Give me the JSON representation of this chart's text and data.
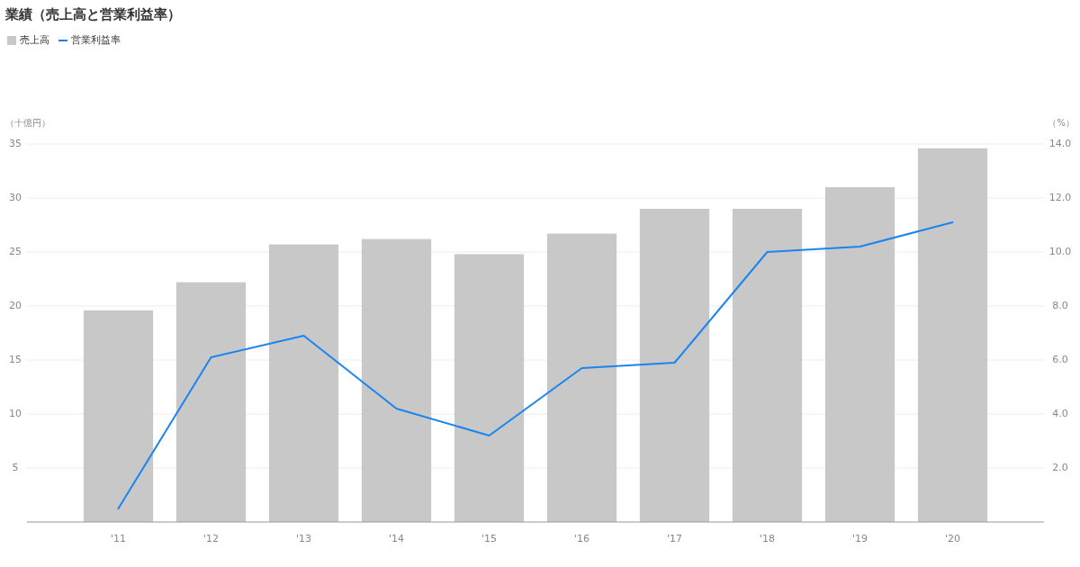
{
  "chart_data": {
    "type": "bar",
    "title": "業績（売上高と営業利益率）",
    "ylabel": "（十億円）",
    "y2label": "（%）",
    "categories": [
      "'11",
      "'12",
      "'13",
      "'14",
      "'15",
      "'16",
      "'17",
      "'18",
      "'19",
      "'20"
    ],
    "series": [
      {
        "name": "売上高",
        "color": "#c8c8c8",
        "values": [
          19.6,
          22.2,
          25.7,
          26.2,
          24.8,
          26.7,
          29.0,
          29.0,
          31.0,
          34.6
        ]
      },
      {
        "name": "営業利益率",
        "type": "line",
        "axis": "y2",
        "color": "#1a84f0",
        "values": [
          0.5,
          6.1,
          6.9,
          4.2,
          3.2,
          5.7,
          5.9,
          10.0,
          10.2,
          11.1
        ]
      }
    ],
    "ylim": [
      0,
      35
    ],
    "yticks": [
      5,
      10,
      15,
      20,
      25,
      30,
      35
    ],
    "y2lim": [
      0,
      14
    ],
    "y2ticks": [
      {
        "value": 2,
        "label": "2.0"
      },
      {
        "value": 4,
        "label": "4.0"
      },
      {
        "value": 6,
        "label": "6.0"
      },
      {
        "value": 8,
        "label": "8.0"
      },
      {
        "value": 10,
        "label": "10.0"
      },
      {
        "value": 12,
        "label": "12.0"
      },
      {
        "value": 14,
        "label": "14.0"
      }
    ],
    "grid": "y",
    "legend": "top left"
  }
}
